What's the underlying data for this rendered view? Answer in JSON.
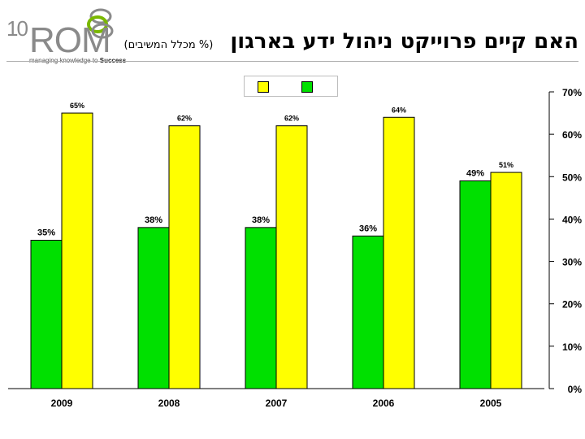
{
  "logo": {
    "number": "10",
    "name": "ROM",
    "tagline_start": "managing knowledge to ",
    "tagline_bold": "Success"
  },
  "header": {
    "title": "האם קיים פרוייקט ניהול ידע בארגון",
    "subtitle": "(% מכלל המשיבים)"
  },
  "colors": {
    "series_green": "#00e000",
    "series_yellow": "#ffff00"
  },
  "chart_data": {
    "type": "bar",
    "categories": [
      "2009",
      "2008",
      "2007",
      "2006",
      "2005"
    ],
    "series": [
      {
        "color": "#00e000",
        "values": [
          35,
          38,
          38,
          36,
          49
        ],
        "labels": [
          "35%",
          "38%",
          "38%",
          "36%",
          "49%"
        ]
      },
      {
        "color": "#ffff00",
        "values": [
          65,
          62,
          62,
          64,
          51
        ],
        "labels": [
          "65%",
          "62%",
          "62%",
          "64%",
          "51%"
        ]
      }
    ],
    "ylim": [
      0,
      70
    ],
    "y_ticks": [
      0,
      10,
      20,
      30,
      40,
      50,
      60,
      70
    ],
    "y_tick_labels": [
      "0%",
      "10%",
      "20%",
      "30%",
      "40%",
      "50%",
      "60%",
      "70%"
    ],
    "y_axis_position": "right",
    "grid": false,
    "legend_placement": "top-center"
  }
}
